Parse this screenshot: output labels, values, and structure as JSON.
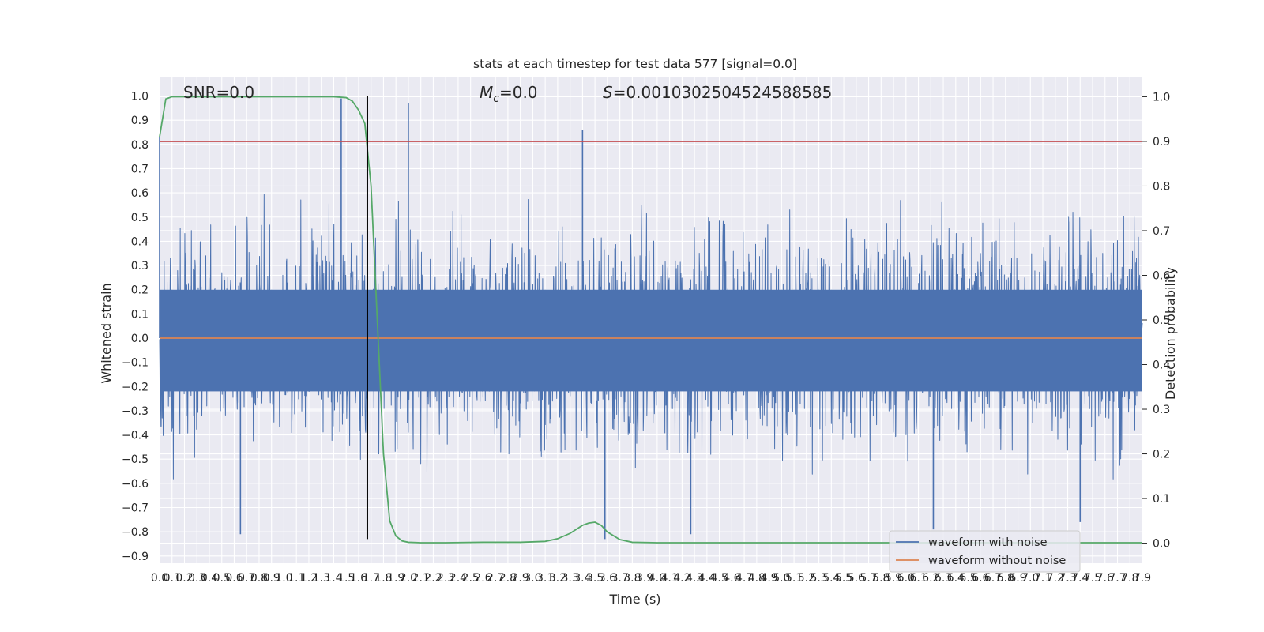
{
  "chart_data": {
    "type": "line",
    "title": "stats at each timestep for test data 577 [signal=0.0]",
    "xlabel": "Time (s)",
    "ylabel_left": "Whitened strain",
    "ylabel_right": "Detection probability",
    "annotations": {
      "snr": "SNR=0.0",
      "mc_symbol": "M",
      "mc_sub": "c",
      "mc_value": "=0.0",
      "s_symbol": "S",
      "s_value": "=0.0010302504524588585"
    },
    "xlim": [
      0.0,
      7.9
    ],
    "xtick_step": 0.1,
    "xtick_count": 80,
    "ylim_left": [
      -0.93,
      1.08
    ],
    "yticks_left": [
      -0.9,
      -0.8,
      -0.7,
      -0.6,
      -0.5,
      -0.4,
      -0.3,
      -0.2,
      -0.1,
      0.0,
      0.1,
      0.2,
      0.3,
      0.4,
      0.5,
      0.6,
      0.7,
      0.8,
      0.9,
      1.0
    ],
    "ytick_labels_left": [
      "−0.9",
      "−0.8",
      "−0.7",
      "−0.6",
      "−0.5",
      "−0.4",
      "−0.3",
      "−0.2",
      "−0.1",
      "0.0",
      "0.1",
      "0.2",
      "0.3",
      "0.4",
      "0.5",
      "0.6",
      "0.7",
      "0.8",
      "0.9",
      "1.0"
    ],
    "ylim_right": [
      -0.045,
      1.045
    ],
    "yticks_right": [
      0.0,
      0.1,
      0.2,
      0.3,
      0.4,
      0.5,
      0.6,
      0.7,
      0.8,
      0.9,
      1.0
    ],
    "ytick_labels_right": [
      "0.0",
      "0.1",
      "0.2",
      "0.3",
      "0.4",
      "0.5",
      "0.6",
      "0.7",
      "0.8",
      "0.9",
      "1.0"
    ],
    "grid": true,
    "legend": {
      "placement": "lower-right",
      "entries": [
        "waveform with noise",
        "waveform without noise"
      ]
    },
    "series": [
      {
        "name": "waveform with noise",
        "axis": "left",
        "color": "#4c72b0",
        "kind": "noise",
        "envelope_min": -0.85,
        "envelope_max": 0.99,
        "spikes": [
          [
            0.0,
            0.83
          ],
          [
            1.46,
            0.99
          ],
          [
            2.0,
            0.97
          ],
          [
            3.4,
            0.86
          ],
          [
            0.65,
            -0.81
          ],
          [
            3.58,
            -0.83
          ],
          [
            4.27,
            -0.81
          ],
          [
            6.22,
            -0.79
          ],
          [
            7.4,
            -0.76
          ]
        ]
      },
      {
        "name": "waveform without noise",
        "axis": "left",
        "color": "#dd8452",
        "x": [
          0.0,
          7.9
        ],
        "y": [
          0.0,
          0.0
        ]
      },
      {
        "axis": "right",
        "color": "#55a868",
        "x": [
          0.0,
          0.05,
          0.1,
          0.2,
          0.4,
          0.8,
          1.2,
          1.4,
          1.5,
          1.55,
          1.6,
          1.65,
          1.7,
          1.75,
          1.8,
          1.85,
          1.9,
          1.95,
          2.0,
          2.1,
          2.3,
          2.6,
          2.9,
          3.1,
          3.2,
          3.3,
          3.4,
          3.45,
          3.5,
          3.55,
          3.6,
          3.7,
          3.8,
          4.0,
          4.5,
          5.5,
          6.5,
          7.9
        ],
        "y": [
          0.91,
          0.995,
          1.0,
          1.0,
          1.0,
          1.0,
          1.0,
          1.0,
          0.998,
          0.99,
          0.97,
          0.94,
          0.8,
          0.5,
          0.2,
          0.05,
          0.016,
          0.005,
          0.002,
          0.001,
          0.001,
          0.002,
          0.002,
          0.004,
          0.01,
          0.022,
          0.04,
          0.045,
          0.047,
          0.04,
          0.025,
          0.008,
          0.002,
          0.001,
          0.001,
          0.001,
          0.001,
          0.001
        ]
      },
      {
        "axis": "right",
        "color": "#c44e52",
        "x": [
          0.0,
          7.9
        ],
        "y": [
          0.9,
          0.9
        ]
      }
    ],
    "vertical_marker": {
      "x": 1.67,
      "color": "#000000"
    }
  }
}
